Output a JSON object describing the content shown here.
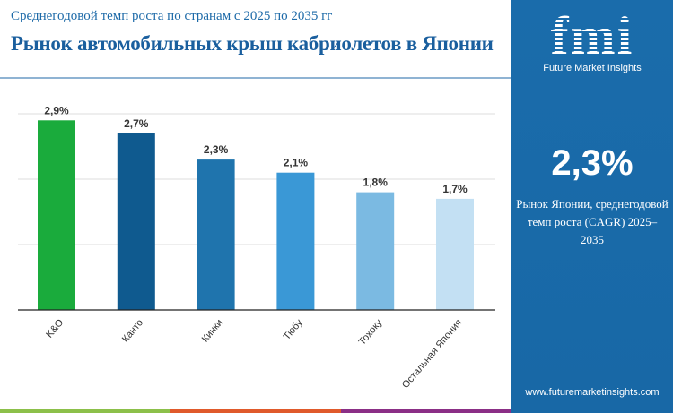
{
  "header": {
    "subtitle": "Среднегодовой темп роста по странам с 2025 по 2035 гг",
    "title": "Рынок автомобильных крыш кабриолетов в Японии"
  },
  "brand": {
    "logo": "fmi",
    "name": "Future Market Insights",
    "url": "www.futuremarketinsights.com"
  },
  "highlight": {
    "value": "2,3%",
    "description": "Рынок Японии, среднегодовой темп роста (CAGR) 2025–2035"
  },
  "colors": {
    "panel": "#1a6cab",
    "stripes": [
      "#8cc04a",
      "#e05a2b",
      "#8b2f86"
    ]
  },
  "chart_data": {
    "type": "bar",
    "categories": [
      "K&O",
      "Канто",
      "Кинки",
      "Тюбу",
      "Тохоку",
      "Остальная Япония"
    ],
    "values": [
      2.9,
      2.7,
      2.3,
      2.1,
      1.8,
      1.7
    ],
    "labels": [
      "2,9%",
      "2,7%",
      "2,3%",
      "2,1%",
      "1,8%",
      "1,7%"
    ],
    "colors": [
      "#1aab3c",
      "#0f5a8f",
      "#1f74ad",
      "#3a98d6",
      "#7bbae2",
      "#c3e0f3"
    ],
    "ylim": [
      0,
      3
    ],
    "grid": true,
    "xlabel": "",
    "ylabel": ""
  }
}
